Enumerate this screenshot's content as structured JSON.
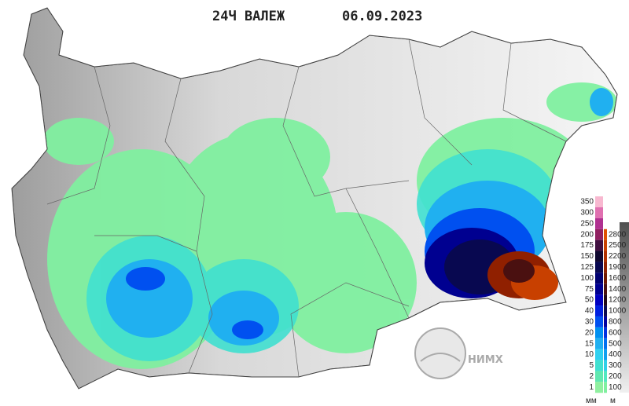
{
  "header": {
    "title": "24Ч ВАЛЕЖ",
    "date": "06.09.2023"
  },
  "legend": {
    "precipitation": {
      "unit": "мм",
      "levels": [
        {
          "value": 350,
          "color": "#f8b8d0"
        },
        {
          "value": 300,
          "color": "#e070b0"
        },
        {
          "value": 250,
          "color": "#b03090"
        },
        {
          "value": 200,
          "color": "#902060"
        },
        {
          "value": 175,
          "color": "#401040"
        },
        {
          "value": 150,
          "color": "#100830"
        },
        {
          "value": 125,
          "color": "#080850"
        },
        {
          "value": 100,
          "color": "#000070"
        },
        {
          "value": 75,
          "color": "#000090"
        },
        {
          "value": 50,
          "color": "#0000c0"
        },
        {
          "value": 40,
          "color": "#0020e0"
        },
        {
          "value": 30,
          "color": "#0050f0"
        },
        {
          "value": 20,
          "color": "#0090f0"
        },
        {
          "value": 15,
          "color": "#20b0f0"
        },
        {
          "value": 10,
          "color": "#30d0f0"
        },
        {
          "value": 5,
          "color": "#40e0d0"
        },
        {
          "value": 2,
          "color": "#60e8b0"
        },
        {
          "value": 1,
          "color": "#90f0a0"
        }
      ]
    },
    "elevation": {
      "unit": "м",
      "levels": [
        {
          "value": 2800,
          "color": "#e05000"
        },
        {
          "value": 2500,
          "color": "#c84000"
        },
        {
          "value": 2200,
          "color": "#b03000"
        },
        {
          "value": 1900,
          "color": "#902000"
        },
        {
          "value": 1600,
          "color": "#701800"
        },
        {
          "value": 1400,
          "color": "#4a1010"
        },
        {
          "value": 1200,
          "color": "#200818"
        },
        {
          "value": 1000,
          "color": "#0a0a50"
        },
        {
          "value": 800,
          "color": "#0000a0"
        },
        {
          "value": 600,
          "color": "#0030e0"
        },
        {
          "value": 500,
          "color": "#0070f0"
        },
        {
          "value": 400,
          "color": "#10a0f0"
        },
        {
          "value": 300,
          "color": "#30d0e8"
        },
        {
          "value": 200,
          "color": "#50e8c0"
        },
        {
          "value": 100,
          "color": "#80f0a0"
        }
      ]
    }
  },
  "logo": {
    "text": "НИМХ"
  }
}
